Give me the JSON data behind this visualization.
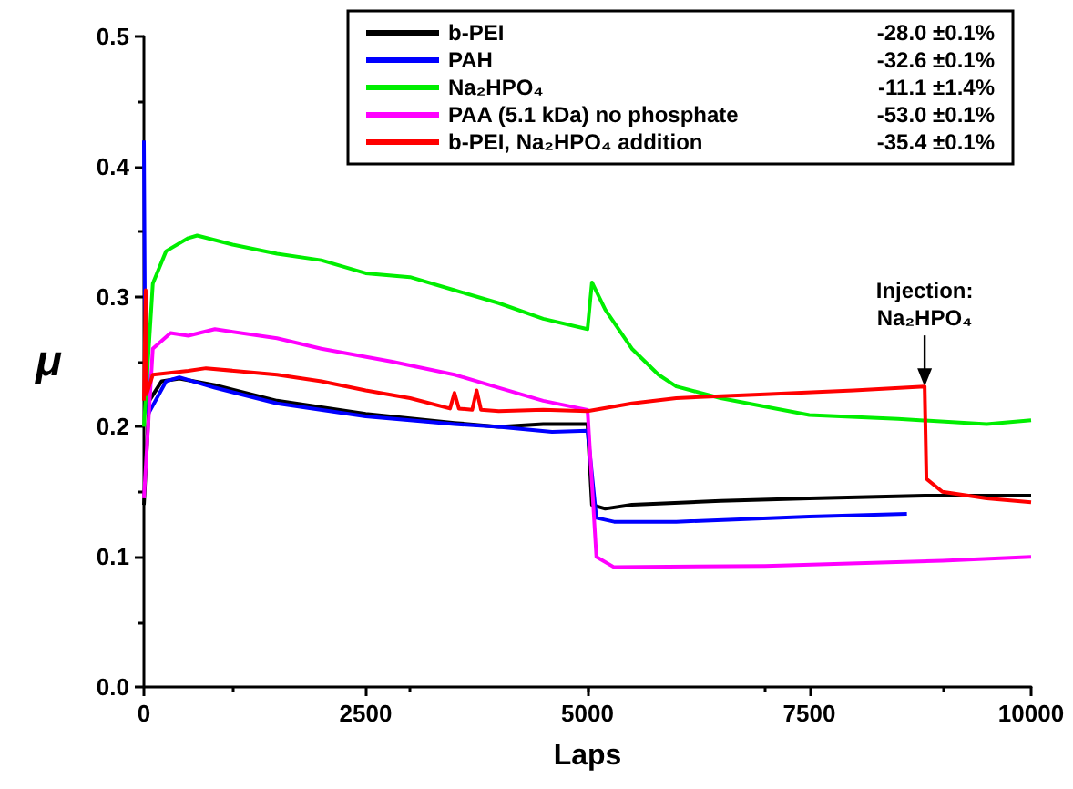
{
  "chart_data": {
    "type": "line",
    "xlabel": "Laps",
    "ylabel": "μ",
    "xlim": [
      0,
      10000
    ],
    "xticks": [
      0,
      2500,
      5000,
      7500,
      10000
    ],
    "ylim": [
      0,
      0.5
    ],
    "yticks": [
      {
        "value": 0,
        "label": "0.0"
      },
      {
        "value": 0.1,
        "label": "0.1"
      },
      {
        "value": 0.2,
        "label": "0.2"
      },
      {
        "value": 0.3,
        "label": "0.3"
      },
      {
        "value": 0.4,
        "label": "0.4"
      },
      {
        "value": 0.5,
        "label": "0.5"
      }
    ],
    "grid": false,
    "legend": "top right",
    "marker": "none",
    "line_style": "solid",
    "annotations": [
      "-28.0 ±0.1%",
      "-32.6 ±0.1%",
      "-11.1 ±1.4%",
      "-53.0 ±0.1%",
      "-35.4 ±0.1%",
      {
        "text": "Injection:\nNa₂HPO₄",
        "x": 8800,
        "y": 0.231
      }
    ],
    "series": [
      {
        "name": "b-PEI",
        "color": "#000000",
        "x": [
          0,
          60,
          200,
          400,
          800,
          1500,
          2500,
          3500,
          4000,
          4500,
          5000,
          5050,
          5200,
          5500,
          6500,
          7500,
          8800,
          10000
        ],
        "values": [
          0.14,
          0.22,
          0.235,
          0.237,
          0.232,
          0.22,
          0.21,
          0.203,
          0.2,
          0.202,
          0.202,
          0.14,
          0.137,
          0.14,
          0.143,
          0.145,
          0.147,
          0.147
        ]
      },
      {
        "name": "PAH",
        "color": "#0000ff",
        "x": [
          0,
          10,
          50,
          250,
          400,
          800,
          1500,
          2500,
          3500,
          4000,
          4600,
          5000,
          5100,
          5300,
          6000,
          7500,
          8600
        ],
        "values": [
          0.42,
          0.3,
          0.21,
          0.235,
          0.238,
          0.23,
          0.218,
          0.208,
          0.202,
          0.2,
          0.196,
          0.197,
          0.13,
          0.127,
          0.127,
          0.131,
          0.133
        ]
      },
      {
        "name": "Na₂HPO₄",
        "color": "#00ee00",
        "x": [
          0,
          100,
          250,
          500,
          600,
          1000,
          1500,
          2000,
          2500,
          3000,
          3500,
          4000,
          4500,
          5000,
          5050,
          5200,
          5500,
          5800,
          6000,
          6500,
          7500,
          8500,
          9500,
          10000
        ],
        "values": [
          0.2,
          0.31,
          0.335,
          0.345,
          0.347,
          0.34,
          0.333,
          0.328,
          0.318,
          0.315,
          0.305,
          0.295,
          0.283,
          0.275,
          0.311,
          0.29,
          0.26,
          0.24,
          0.231,
          0.222,
          0.209,
          0.206,
          0.202,
          0.205
        ]
      },
      {
        "name": "PAA (5.1 kDa) no phosphate",
        "color": "#ff00ff",
        "x": [
          0,
          100,
          300,
          500,
          800,
          1500,
          2000,
          2800,
          3500,
          4000,
          4500,
          5000,
          5100,
          5300,
          7000,
          9000,
          10000
        ],
        "values": [
          0.145,
          0.26,
          0.272,
          0.27,
          0.275,
          0.268,
          0.26,
          0.25,
          0.24,
          0.23,
          0.22,
          0.213,
          0.1,
          0.092,
          0.093,
          0.097,
          0.1
        ]
      },
      {
        "name": "b-PEI, Na₂HPO₄ addition",
        "color": "#ff0000",
        "x": [
          0,
          20,
          30,
          100,
          500,
          700,
          1500,
          2000,
          2500,
          3000,
          3450,
          3500,
          3550,
          3700,
          3750,
          3800,
          4000,
          4500,
          5000,
          5500,
          6000,
          7000,
          8000,
          8800,
          8820,
          9000,
          9500,
          10000
        ],
        "values": [
          0.22,
          0.305,
          0.225,
          0.24,
          0.243,
          0.245,
          0.24,
          0.235,
          0.228,
          0.222,
          0.214,
          0.226,
          0.214,
          0.213,
          0.228,
          0.213,
          0.212,
          0.213,
          0.212,
          0.218,
          0.222,
          0.225,
          0.228,
          0.231,
          0.16,
          0.15,
          0.145,
          0.142
        ]
      }
    ]
  }
}
